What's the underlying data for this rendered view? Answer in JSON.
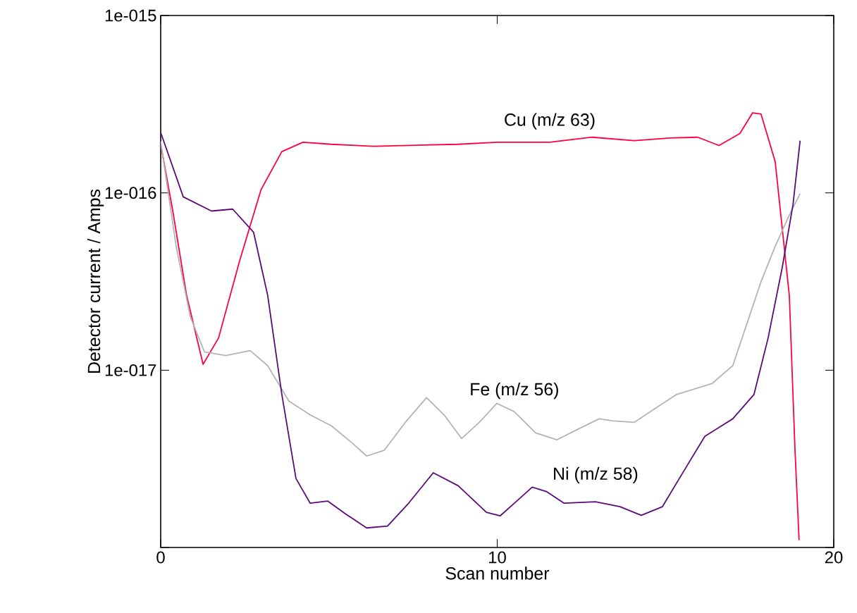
{
  "chart_data": {
    "type": "line",
    "xlabel": "Scan number",
    "ylabel": "Detector current / Amps",
    "log": true,
    "grid": false,
    "marker": "none",
    "line_style": "solid",
    "xlim": [
      0,
      20
    ],
    "xticks": [
      0,
      10,
      20
    ],
    "ylim": [
      1e-18,
      1e-15
    ],
    "yticks": [
      {
        "value": 1e-18,
        "label": null
      },
      {
        "value": 1e-17,
        "label": "1e-017"
      },
      {
        "value": 1e-16,
        "label": "1e-016"
      },
      {
        "value": 1e-15,
        "label": "1e-015"
      }
    ],
    "series": [
      {
        "name": "Cu (m/z 63)",
        "color": "#ff0040",
        "x": [
          0,
          0.36,
          0.77,
          1.26,
          1.72,
          2.35,
          2.98,
          3.6,
          4.23,
          5.07,
          6.33,
          7.79,
          8.84,
          10.01,
          11.56,
          12.82,
          14.07,
          15.12,
          15.96,
          16.59,
          17.21,
          17.59,
          17.84,
          18.26,
          18.68,
          18.85,
          18.97
        ],
        "values": [
          1.88e-16,
          7.9e-17,
          2.64e-17,
          1.08e-17,
          1.52e-17,
          4.16e-17,
          1.04e-16,
          1.71e-16,
          1.93e-16,
          1.88e-16,
          1.83e-16,
          1.86e-16,
          1.88e-16,
          1.93e-16,
          1.93e-16,
          2.06e-16,
          1.97e-16,
          2.04e-16,
          2.06e-16,
          1.85e-16,
          2.16e-16,
          2.83e-16,
          2.78e-16,
          1.5e-16,
          2.64e-17,
          3.5e-18,
          1.1e-18
        ]
      },
      {
        "name": "Fe (m/z 56)",
        "color": "#b4b4b4",
        "x": [
          0,
          0.46,
          0.88,
          1.3,
          1.93,
          2.66,
          3.18,
          3.81,
          4.44,
          5.07,
          5.7,
          6.12,
          6.64,
          7.27,
          7.9,
          8.42,
          8.94,
          9.47,
          9.99,
          10.51,
          11.14,
          11.77,
          12.4,
          13.03,
          13.45,
          14.07,
          14.7,
          15.33,
          16.38,
          17.0,
          17.42,
          17.84,
          18.26,
          18.68,
          19.0
        ],
        "values": [
          1.95e-16,
          4.99e-17,
          2e-17,
          1.27e-17,
          1.21e-17,
          1.29e-17,
          1.06e-17,
          6.7e-18,
          5.6e-18,
          4.86e-18,
          3.87e-18,
          3.28e-18,
          3.53e-18,
          5.08e-18,
          7e-18,
          5.6e-18,
          4.12e-18,
          5.08e-18,
          6.5e-18,
          5.83e-18,
          4.43e-18,
          4.05e-18,
          4.65e-18,
          5.32e-18,
          5.18e-18,
          5.08e-18,
          6.1e-18,
          7.3e-18,
          8.4e-18,
          1.06e-17,
          1.83e-17,
          3.16e-17,
          4.99e-17,
          7.5e-17,
          9.9e-17
        ]
      },
      {
        "name": "Ni (m/z 58)",
        "color": "#5c0a78",
        "x": [
          0,
          0.67,
          1.51,
          2.14,
          2.76,
          3.18,
          3.6,
          4.02,
          4.44,
          4.96,
          5.49,
          6.12,
          6.74,
          7.37,
          8.1,
          8.84,
          9.68,
          10.09,
          10.51,
          11.04,
          11.46,
          11.98,
          12.92,
          13.65,
          14.28,
          14.91,
          15.54,
          16.17,
          17.0,
          17.63,
          18.05,
          18.47,
          18.79,
          19.0
        ],
        "values": [
          2.19e-16,
          9.5e-17,
          7.9e-17,
          8.1e-17,
          6e-17,
          2.64e-17,
          7.3e-18,
          2.45e-18,
          1.78e-18,
          1.83e-18,
          1.55e-18,
          1.29e-18,
          1.32e-18,
          1.78e-18,
          2.64e-18,
          2.23e-18,
          1.58e-18,
          1.51e-18,
          1.78e-18,
          2.19e-18,
          2.07e-18,
          1.78e-18,
          1.81e-18,
          1.7e-18,
          1.52e-18,
          1.7e-18,
          2.69e-18,
          4.24e-18,
          5.32e-18,
          7.3e-18,
          1.52e-17,
          3.8e-17,
          8.6e-17,
          1.97e-16
        ]
      }
    ]
  }
}
